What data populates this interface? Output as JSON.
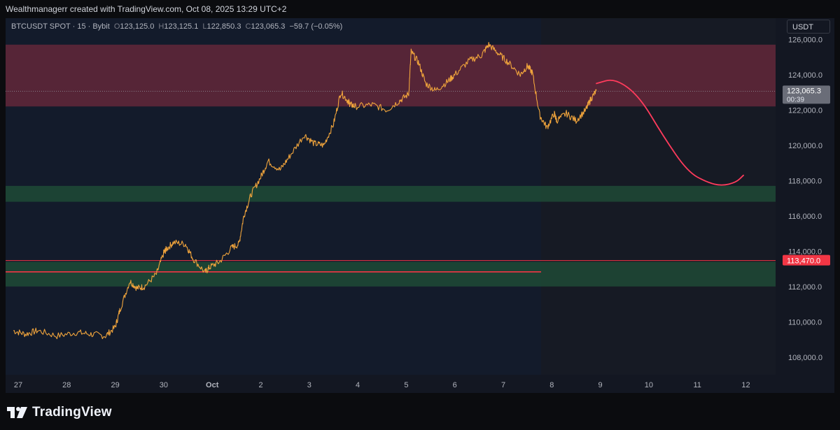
{
  "caption": "Wealthmanagerr created with TradingView.com, Oct 08, 2025 13:29 UTC+2",
  "symbol": {
    "name": "BTCUSDT SPOT · 15 · Bybit",
    "open_label": "O",
    "open": "123,125.0",
    "high_label": "H",
    "high": "123,125.1",
    "low_label": "L",
    "low": "122,850.3",
    "close_label": "C",
    "close": "123,065.3",
    "change": "−59.7 (−0.05%)"
  },
  "currency": "USDT",
  "brand": "TradingView",
  "colors": {
    "background": "#131722",
    "candle": "#f0a43c",
    "resistance_zone": "#6d2a3c",
    "support_zone": "#1f4a36",
    "projection_line": "#ff3b5c",
    "level_line": "#f23645"
  },
  "chart_data": {
    "type": "line",
    "y_axis": {
      "range": [
        107000,
        127200
      ],
      "ticks": [
        "126,000.0",
        "124,000.0",
        "122,000.0",
        "120,000.0",
        "118,000.0",
        "116,000.0",
        "114,000.0",
        "112,000.0",
        "110,000.0",
        "108,000.0"
      ],
      "tick_values": [
        126000,
        124000,
        122000,
        120000,
        118000,
        116000,
        114000,
        112000,
        110000,
        108000
      ]
    },
    "x_axis": {
      "range": [
        0,
        15.3
      ],
      "ticks": [
        "27",
        "28",
        "29",
        "30",
        "Oct",
        "2",
        "3",
        "4",
        "5",
        "6",
        "7",
        "8",
        "9",
        "10",
        "11",
        "12"
      ],
      "tick_values": [
        0.0,
        1.0,
        2.0,
        3.0,
        4.0,
        5.0,
        6.0,
        7.0,
        8.0,
        9.0,
        10.0,
        11.0,
        12.0,
        13.0,
        14.0,
        15.0
      ]
    },
    "price_series": {
      "x": [
        -0.1,
        0.15,
        0.4,
        0.8,
        1.2,
        1.5,
        1.8,
        2.0,
        2.1,
        2.3,
        2.45,
        2.6,
        2.85,
        3.0,
        3.05,
        3.2,
        3.45,
        3.6,
        3.85,
        3.95,
        4.15,
        4.4,
        4.55,
        4.65,
        4.8,
        5.0,
        5.15,
        5.4,
        5.6,
        5.9,
        6.1,
        6.3,
        6.5,
        6.65,
        6.8,
        6.85,
        6.95,
        7.3,
        7.6,
        7.85,
        8.05,
        8.1,
        8.25,
        8.4,
        8.6,
        8.85,
        9.0,
        9.3,
        9.55,
        9.7,
        9.9,
        10.1,
        10.35,
        10.5,
        10.6,
        10.75,
        10.9,
        11.05,
        11.1,
        11.3,
        11.5,
        11.7,
        11.8,
        11.92
      ],
      "y": [
        109500,
        109300,
        109500,
        109200,
        109400,
        109300,
        109200,
        109700,
        110700,
        112300,
        111900,
        112000,
        112700,
        113900,
        114100,
        114500,
        114400,
        113600,
        112800,
        113100,
        113400,
        114200,
        114400,
        116000,
        117200,
        118200,
        119100,
        118600,
        119400,
        120600,
        120100,
        120000,
        121200,
        123000,
        122500,
        122300,
        122200,
        122300,
        122000,
        122500,
        122900,
        125300,
        124700,
        123500,
        123100,
        123600,
        124000,
        124800,
        125100,
        125700,
        125200,
        124700,
        124000,
        124500,
        124100,
        121700,
        121000,
        121800,
        121400,
        121800,
        121400,
        122000,
        122600,
        123100
      ]
    },
    "projection": {
      "x": [
        11.92,
        12.3,
        12.8,
        13.3,
        13.8,
        14.2,
        14.5,
        14.8,
        14.95
      ],
      "y": [
        123500,
        123800,
        122800,
        120500,
        118500,
        117900,
        117700,
        117900,
        118300
      ]
    },
    "zones": [
      {
        "kind": "resistance",
        "from": 122200,
        "to": 125700
      },
      {
        "kind": "support",
        "from": 116800,
        "to": 117700
      },
      {
        "kind": "support",
        "from": 112000,
        "to": 113400
      }
    ],
    "levels": [
      113470,
      112830
    ],
    "current_price_label": "123,065.3",
    "countdown_label": "00:39",
    "level_label": "113,470.0"
  }
}
